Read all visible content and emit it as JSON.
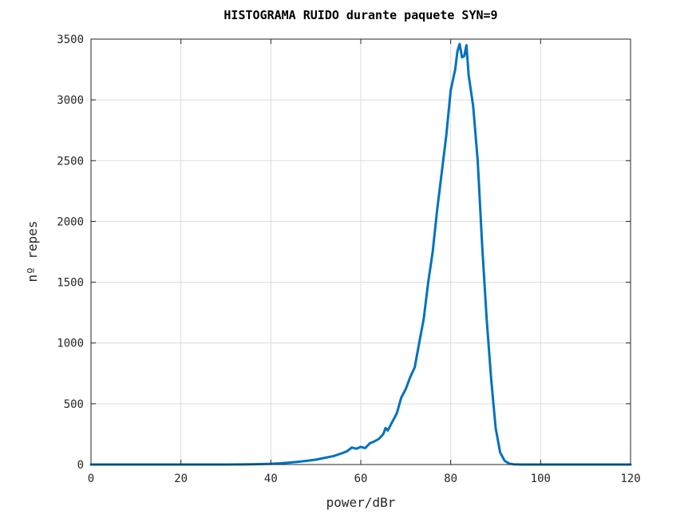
{
  "chart_data": {
    "type": "line",
    "title": "HISTOGRAMA RUIDO durante paquete SYN=9",
    "xlabel": "power/dBr",
    "ylabel": "nº repes",
    "xlim": [
      0,
      120
    ],
    "ylim": [
      0,
      3500
    ],
    "xticks": [
      "0",
      "20",
      "40",
      "60",
      "80",
      "100",
      "120"
    ],
    "yticks": [
      "0",
      "500",
      "1000",
      "1500",
      "2000",
      "2500",
      "3000",
      "3500"
    ],
    "grid": true,
    "color": "#0072BD",
    "series": [
      {
        "x": [
          0,
          10,
          20,
          30,
          35,
          38,
          40,
          42,
          44,
          46,
          48,
          50,
          52,
          54,
          56,
          57,
          58,
          59,
          60,
          61,
          62,
          63,
          64,
          65,
          65.5,
          66,
          67,
          68,
          69,
          70,
          71,
          72,
          73,
          74,
          75,
          76,
          77,
          78,
          79,
          80,
          81,
          81.5,
          82,
          82.5,
          83,
          83.5,
          84,
          85,
          86,
          87,
          88,
          89,
          90,
          91,
          92,
          93,
          94,
          96,
          100,
          110,
          120
        ],
        "y": [
          0,
          0,
          0,
          0,
          2,
          4,
          6,
          10,
          16,
          22,
          30,
          40,
          55,
          70,
          95,
          110,
          140,
          130,
          145,
          135,
          175,
          190,
          210,
          250,
          300,
          280,
          350,
          420,
          550,
          620,
          720,
          800,
          1000,
          1200,
          1500,
          1750,
          2100,
          2400,
          2700,
          3080,
          3250,
          3400,
          3460,
          3350,
          3360,
          3450,
          3200,
          2950,
          2500,
          1800,
          1200,
          700,
          300,
          100,
          30,
          8,
          2,
          0,
          0,
          0,
          0
        ]
      }
    ]
  }
}
